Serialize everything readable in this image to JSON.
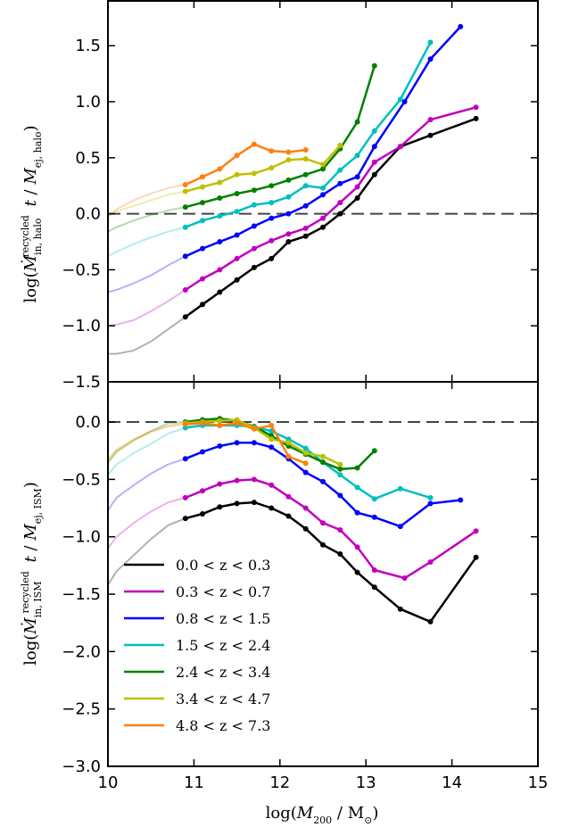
{
  "chart_data": [
    {
      "type": "line",
      "panel": "top",
      "ylabel": "log(Ṁ_in,halo^recycled t / M_ej,halo)",
      "xlim": [
        10,
        15
      ],
      "ylim": [
        -1.5,
        1.9
      ],
      "yticks": [
        -1.5,
        -1.0,
        -0.5,
        0.0,
        0.5,
        1.0,
        1.5
      ],
      "ytick_labels": [
        "−1.5",
        "−1.0",
        "−0.5",
        "0.0",
        "0.5",
        "1.0",
        "1.5"
      ],
      "reference_line": {
        "y": 0,
        "style": "dashed"
      },
      "grid": false,
      "series": [
        {
          "name": "0.0 < z < 0.3",
          "color": "#000000",
          "faint_x": [
            10.0,
            10.1,
            10.3,
            10.5,
            10.7,
            10.9
          ],
          "faint_y": [
            -1.25,
            -1.25,
            -1.22,
            -1.14,
            -1.03,
            -0.92
          ],
          "x": [
            10.9,
            11.1,
            11.3,
            11.5,
            11.7,
            11.9,
            12.1,
            12.3,
            12.5,
            12.7,
            12.9,
            13.1,
            13.4,
            13.75,
            14.28
          ],
          "y": [
            -0.92,
            -0.81,
            -0.7,
            -0.59,
            -0.48,
            -0.4,
            -0.25,
            -0.2,
            -0.12,
            -0.0,
            0.14,
            0.35,
            0.6,
            0.7,
            0.85
          ]
        },
        {
          "name": "0.3 < z < 0.7",
          "color": "#bf00bf",
          "faint_x": [
            10.0,
            10.1,
            10.3,
            10.5,
            10.7,
            10.9
          ],
          "faint_y": [
            -1.0,
            -0.99,
            -0.95,
            -0.87,
            -0.78,
            -0.68
          ],
          "x": [
            10.9,
            11.1,
            11.3,
            11.5,
            11.7,
            11.9,
            12.1,
            12.3,
            12.5,
            12.7,
            12.9,
            13.1,
            13.4,
            13.75,
            14.28
          ],
          "y": [
            -0.68,
            -0.58,
            -0.5,
            -0.4,
            -0.31,
            -0.24,
            -0.18,
            -0.13,
            -0.04,
            0.1,
            0.24,
            0.46,
            0.6,
            0.84,
            0.95
          ]
        },
        {
          "name": "0.8 < z < 1.5",
          "color": "#0000ff",
          "faint_x": [
            10.0,
            10.1,
            10.3,
            10.5,
            10.7,
            10.9
          ],
          "faint_y": [
            -0.7,
            -0.68,
            -0.62,
            -0.55,
            -0.46,
            -0.38
          ],
          "x": [
            10.9,
            11.1,
            11.3,
            11.5,
            11.7,
            11.9,
            12.1,
            12.3,
            12.5,
            12.7,
            12.9,
            13.1,
            13.45,
            13.75,
            14.1
          ],
          "y": [
            -0.38,
            -0.31,
            -0.25,
            -0.19,
            -0.11,
            -0.04,
            0.0,
            0.07,
            0.17,
            0.27,
            0.33,
            0.6,
            1.0,
            1.38,
            1.67
          ]
        },
        {
          "name": "1.5 < z < 2.4",
          "color": "#00bfbf",
          "faint_x": [
            10.0,
            10.1,
            10.3,
            10.5,
            10.7,
            10.9
          ],
          "faint_y": [
            -0.38,
            -0.34,
            -0.27,
            -0.21,
            -0.16,
            -0.12
          ],
          "x": [
            10.9,
            11.1,
            11.3,
            11.5,
            11.7,
            11.9,
            12.1,
            12.3,
            12.5,
            12.7,
            12.9,
            13.1,
            13.4,
            13.75
          ],
          "y": [
            -0.12,
            -0.06,
            -0.02,
            0.02,
            0.08,
            0.1,
            0.15,
            0.25,
            0.23,
            0.39,
            0.52,
            0.74,
            1.02,
            1.53
          ]
        },
        {
          "name": "2.4 < z < 3.4",
          "color": "#008000",
          "faint_x": [
            10.0,
            10.1,
            10.3,
            10.5,
            10.7,
            10.9
          ],
          "faint_y": [
            -0.16,
            -0.12,
            -0.06,
            -0.01,
            0.03,
            0.06
          ],
          "x": [
            10.9,
            11.1,
            11.3,
            11.5,
            11.7,
            11.9,
            12.1,
            12.3,
            12.5,
            12.7,
            12.9,
            13.1
          ],
          "y": [
            0.06,
            0.1,
            0.14,
            0.18,
            0.21,
            0.25,
            0.3,
            0.35,
            0.4,
            0.58,
            0.82,
            1.32
          ]
        },
        {
          "name": "3.4 < z < 4.7",
          "color": "#bfbf00",
          "faint_x": [
            10.0,
            10.1,
            10.3,
            10.5,
            10.7,
            10.9
          ],
          "faint_y": [
            -0.02,
            0.02,
            0.07,
            0.12,
            0.17,
            0.2
          ],
          "x": [
            10.9,
            11.1,
            11.3,
            11.5,
            11.7,
            11.9,
            12.1,
            12.3,
            12.5,
            12.7
          ],
          "y": [
            0.2,
            0.24,
            0.28,
            0.35,
            0.36,
            0.41,
            0.48,
            0.49,
            0.44,
            0.61
          ]
        },
        {
          "name": "4.8 < z < 7.3",
          "color": "#ff7f0e",
          "faint_x": [
            10.0,
            10.1,
            10.3,
            10.5,
            10.7,
            10.9
          ],
          "faint_y": [
            -0.03,
            0.04,
            0.12,
            0.18,
            0.23,
            0.26
          ],
          "x": [
            10.9,
            11.1,
            11.3,
            11.5,
            11.7,
            11.9,
            12.1,
            12.3
          ],
          "y": [
            0.26,
            0.33,
            0.4,
            0.52,
            0.62,
            0.56,
            0.55,
            0.57
          ]
        }
      ]
    },
    {
      "type": "line",
      "panel": "bottom",
      "ylabel": "log(Ṁ_in,ISM^recycled t / M_ej,ISM)",
      "xlabel": "log(M_200 / M_⊙)",
      "xlim": [
        10,
        15
      ],
      "ylim": [
        -3.0,
        0.35
      ],
      "xticks": [
        10,
        11,
        12,
        13,
        14,
        15
      ],
      "xtick_labels": [
        "10",
        "11",
        "12",
        "13",
        "14",
        "15"
      ],
      "yticks": [
        -3.0,
        -2.5,
        -2.0,
        -1.5,
        -1.0,
        -0.5,
        0.0
      ],
      "ytick_labels": [
        "−3.0",
        "−2.5",
        "−2.0",
        "−1.5",
        "−1.0",
        "−0.5",
        "0.0"
      ],
      "reference_line": {
        "y": 0,
        "style": "dashed"
      },
      "grid": false,
      "legend": {
        "placement": "lower-left"
      },
      "series": [
        {
          "name": "0.0 < z < 0.3",
          "color": "#000000",
          "faint_x": [
            10.0,
            10.1,
            10.3,
            10.5,
            10.7,
            10.9
          ],
          "faint_y": [
            -1.42,
            -1.3,
            -1.16,
            -1.02,
            -0.9,
            -0.84
          ],
          "x": [
            10.9,
            11.1,
            11.3,
            11.5,
            11.7,
            11.9,
            12.1,
            12.3,
            12.5,
            12.7,
            12.9,
            13.1,
            13.4,
            13.75,
            14.28
          ],
          "y": [
            -0.84,
            -0.8,
            -0.74,
            -0.71,
            -0.7,
            -0.75,
            -0.82,
            -0.93,
            -1.07,
            -1.15,
            -1.31,
            -1.44,
            -1.63,
            -1.74,
            -1.18
          ]
        },
        {
          "name": "0.3 < z < 0.7",
          "color": "#bf00bf",
          "faint_x": [
            10.0,
            10.1,
            10.3,
            10.5,
            10.7,
            10.9
          ],
          "faint_y": [
            -1.1,
            -1.0,
            -0.88,
            -0.78,
            -0.7,
            -0.66
          ],
          "x": [
            10.9,
            11.1,
            11.3,
            11.5,
            11.7,
            11.9,
            12.1,
            12.3,
            12.5,
            12.7,
            12.9,
            13.1,
            13.45,
            13.75,
            14.28
          ],
          "y": [
            -0.66,
            -0.6,
            -0.54,
            -0.51,
            -0.5,
            -0.55,
            -0.65,
            -0.75,
            -0.88,
            -0.94,
            -1.09,
            -1.29,
            -1.36,
            -1.22,
            -0.95
          ]
        },
        {
          "name": "0.8 < z < 1.5",
          "color": "#0000ff",
          "faint_x": [
            10.0,
            10.1,
            10.3,
            10.5,
            10.7,
            10.9
          ],
          "faint_y": [
            -0.77,
            -0.66,
            -0.55,
            -0.45,
            -0.37,
            -0.32
          ],
          "x": [
            10.9,
            11.1,
            11.3,
            11.5,
            11.7,
            11.9,
            12.1,
            12.3,
            12.5,
            12.7,
            12.9,
            13.1,
            13.4,
            13.75,
            14.1
          ],
          "y": [
            -0.32,
            -0.26,
            -0.21,
            -0.18,
            -0.18,
            -0.22,
            -0.32,
            -0.44,
            -0.52,
            -0.64,
            -0.79,
            -0.83,
            -0.91,
            -0.71,
            -0.68
          ]
        },
        {
          "name": "1.5 < z < 2.4",
          "color": "#00bfbf",
          "faint_x": [
            10.0,
            10.1,
            10.3,
            10.5,
            10.7,
            10.9
          ],
          "faint_y": [
            -0.46,
            -0.37,
            -0.27,
            -0.19,
            -0.1,
            -0.05
          ],
          "x": [
            10.9,
            11.1,
            11.3,
            11.5,
            11.7,
            11.9,
            12.1,
            12.3,
            12.5,
            12.7,
            12.9,
            13.1,
            13.4,
            13.75
          ],
          "y": [
            -0.05,
            -0.03,
            -0.03,
            -0.03,
            -0.04,
            -0.08,
            -0.15,
            -0.23,
            -0.35,
            -0.46,
            -0.57,
            -0.67,
            -0.58,
            -0.66
          ]
        },
        {
          "name": "2.4 < z < 3.4",
          "color": "#008000",
          "faint_x": [
            10.0,
            10.1,
            10.3,
            10.5,
            10.7,
            10.9
          ],
          "faint_y": [
            -0.36,
            -0.26,
            -0.16,
            -0.08,
            -0.01,
            0.0
          ],
          "x": [
            10.9,
            11.1,
            11.3,
            11.5,
            11.7,
            11.9,
            12.1,
            12.3,
            12.5,
            12.7,
            12.9,
            13.1
          ],
          "y": [
            0.0,
            0.02,
            0.03,
            0.01,
            -0.04,
            -0.12,
            -0.21,
            -0.28,
            -0.35,
            -0.41,
            -0.4,
            -0.25
          ]
        },
        {
          "name": "3.4 < z < 4.7",
          "color": "#bfbf00",
          "faint_x": [
            10.0,
            10.1,
            10.3,
            10.5,
            10.7,
            10.9
          ],
          "faint_y": [
            -0.34,
            -0.25,
            -0.16,
            -0.09,
            -0.03,
            -0.01
          ],
          "x": [
            10.9,
            11.1,
            11.3,
            11.5,
            11.7,
            11.9,
            12.1,
            12.3,
            12.5,
            12.7
          ],
          "y": [
            -0.01,
            0.0,
            0.01,
            0.02,
            -0.05,
            -0.15,
            -0.18,
            -0.27,
            -0.3,
            -0.37
          ]
        },
        {
          "name": "4.8 < z < 7.3",
          "color": "#ff7f0e",
          "faint_x": [
            10.0,
            10.1,
            10.3,
            10.5,
            10.7,
            10.9
          ],
          "faint_y": [
            -0.33,
            -0.24,
            -0.15,
            -0.08,
            -0.04,
            -0.02
          ],
          "x": [
            10.9,
            11.1,
            11.3,
            11.5,
            11.7,
            11.9,
            12.1,
            12.3
          ],
          "y": [
            -0.02,
            -0.01,
            -0.03,
            -0.01,
            -0.06,
            -0.03,
            -0.3,
            -0.36
          ]
        }
      ]
    }
  ]
}
